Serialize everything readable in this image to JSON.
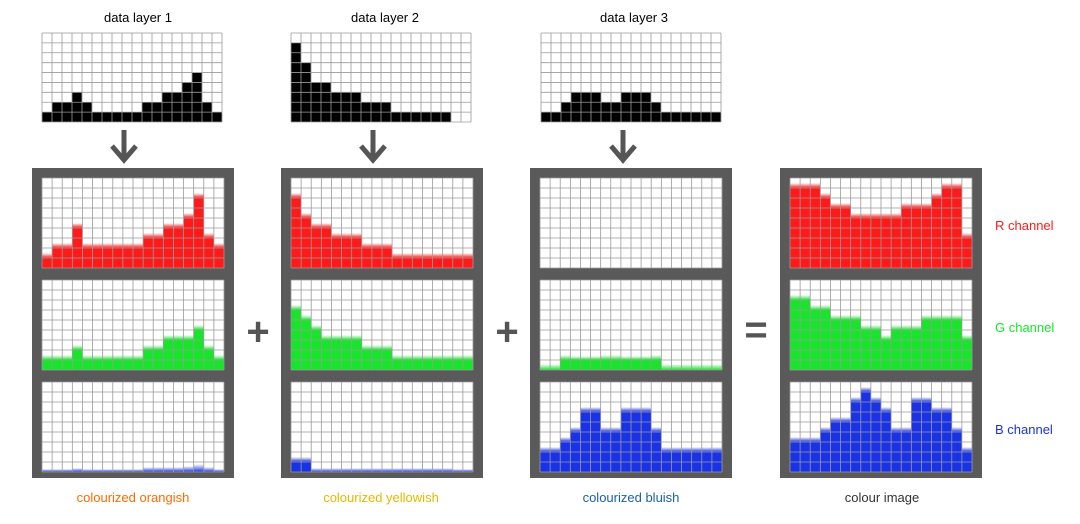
{
  "layers": [
    {
      "title": "data layer 1",
      "values": [
        1,
        2,
        2,
        3,
        2,
        1,
        1,
        1,
        1,
        1,
        2,
        2,
        3,
        3,
        4,
        5,
        2,
        1
      ],
      "caption": "colourized orangish"
    },
    {
      "title": "data layer 2",
      "values": [
        8,
        6,
        4,
        4,
        3,
        3,
        3,
        2,
        2,
        2,
        1,
        1,
        1,
        1,
        1,
        1,
        0,
        0
      ],
      "caption": "colourized yellowish"
    },
    {
      "title": "data layer 3",
      "values": [
        1,
        1,
        2,
        3,
        3,
        3,
        2,
        2,
        3,
        3,
        3,
        2,
        1,
        1,
        1,
        1,
        1,
        1
      ],
      "caption": "colourized bluish"
    }
  ],
  "channels": {
    "rows": 9,
    "cols": 18,
    "panels": [
      {
        "r": [
          1,
          2,
          2,
          4,
          2,
          2,
          2,
          2,
          2,
          2,
          3,
          3,
          4,
          4,
          5,
          7,
          3,
          2
        ],
        "g": [
          1,
          1,
          1,
          2,
          1,
          1,
          1,
          1,
          1,
          1,
          2,
          2,
          3,
          3,
          3,
          4,
          2,
          1
        ],
        "b": [
          0.3,
          0.3,
          0.3,
          0.4,
          0.3,
          0.3,
          0.3,
          0.3,
          0.3,
          0.3,
          0.5,
          0.5,
          0.5,
          0.5,
          0.6,
          0.8,
          0.5,
          0.3
        ]
      },
      {
        "r": [
          7,
          5,
          4,
          4,
          3,
          3,
          3,
          2,
          2,
          2,
          1.5,
          1.5,
          1.5,
          1.5,
          1.5,
          1.5,
          1,
          1
        ],
        "g": [
          6,
          5,
          4,
          3,
          3,
          3,
          3,
          2,
          2,
          2,
          1.5,
          1.5,
          1.5,
          1.5,
          1.5,
          1.5,
          1,
          1
        ],
        "b": [
          1,
          1,
          0.4,
          0.4,
          0.4,
          0.4,
          0.4,
          0.4,
          0.4,
          0.4,
          0.4,
          0.4,
          0.4,
          0.4,
          0.4,
          0.4,
          0.3,
          0.3
        ]
      },
      {
        "r": [
          0,
          0,
          0,
          0,
          0,
          0,
          0,
          0,
          0,
          0,
          0,
          0,
          0,
          0,
          0,
          0,
          0,
          0
        ],
        "g": [
          0.6,
          0.6,
          1,
          1.4,
          1.4,
          1.4,
          1,
          1,
          1.4,
          1.4,
          1.4,
          1,
          0.6,
          0.6,
          0.6,
          0.6,
          0.6,
          0.6
        ],
        "b": [
          2,
          2,
          3,
          4,
          6,
          6,
          4,
          4,
          6,
          6,
          6,
          4,
          2,
          2,
          2,
          2,
          2,
          2
        ]
      },
      {
        "r": [
          8,
          8,
          8,
          7,
          6,
          6,
          5,
          5,
          5,
          5,
          5,
          6,
          6,
          6,
          7,
          8,
          8,
          3
        ],
        "g": [
          7,
          7,
          6,
          6,
          5,
          5,
          5,
          4,
          4,
          3,
          4,
          4,
          4,
          5,
          5,
          5,
          5,
          3
        ],
        "b": [
          3,
          3,
          3,
          4,
          5,
          5,
          7,
          8,
          7,
          6,
          4,
          4,
          7,
          7,
          6,
          6,
          4,
          2
        ]
      }
    ]
  },
  "operators": [
    "+",
    "+",
    "="
  ],
  "result_caption": "colour image",
  "channel_labels": [
    "R channel",
    "G channel",
    "B channel"
  ],
  "colors": {
    "frame": "#5a5a5a",
    "grid_line": "#9a9a9a",
    "red": "#ff1a1a",
    "green": "#16e62a",
    "blue": "#1a32e6",
    "black": "#000000",
    "arrow": "#555555",
    "caption_orange": "#ff6a00",
    "caption_yellow": "#e6b800",
    "caption_blue": "#1a60a8",
    "caption_dark": "#333333"
  },
  "icons": {
    "arrow": "down-arrow-icon",
    "plus": "plus-icon",
    "equals": "equals-icon"
  }
}
